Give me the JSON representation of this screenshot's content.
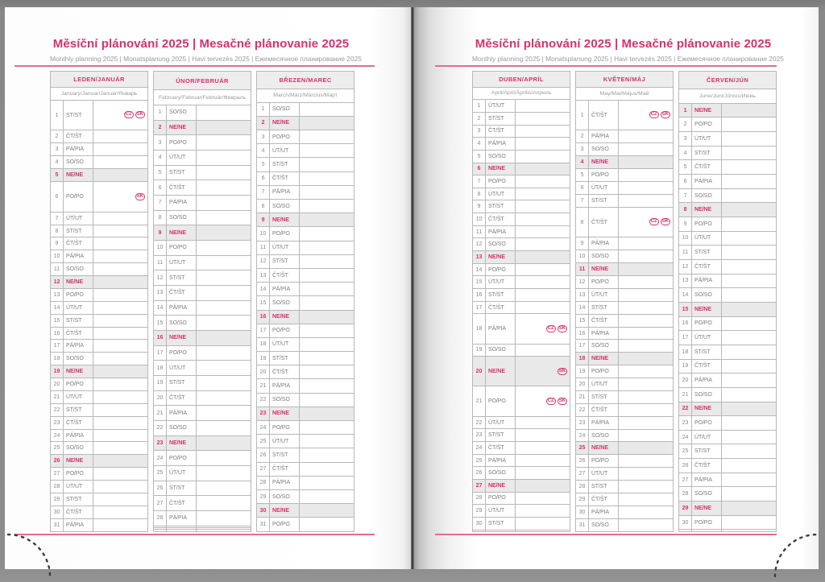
{
  "title": "Měsíční plánování 2025 | Mesačné plánovanie 2025",
  "subtitle": "Monthly planning 2025 | Monatsplanung 2025 | Havi tervezés 2025 | Ежемесячное планирование 2025",
  "sunday_label": "NE/NE",
  "badges": {
    "cz": "CZ",
    "sk": "SK"
  },
  "day_abbreviations": {
    "monday": "PO/PO",
    "tuesday": "ÚT/UT",
    "wednesday": "ST/ST",
    "thursday": "ČT/ŠT",
    "friday": "PÁ/PIA",
    "saturday": "SO/SO",
    "sunday": "NE/NE"
  },
  "colors": {
    "accent_pink": "#d6326d",
    "rule_pink": "#de6d96",
    "sunday_row_bg": "#e9e9e9",
    "month_header_bg": "#ededed",
    "table_border": "#b8b8b8",
    "text_gray": "#7d7d7d"
  },
  "months": [
    {
      "page": "left",
      "name": "LEDEN/JANUÁR",
      "langs": "January/Januar/Január/Январь",
      "rows": [
        [
          1,
          "ST/ST",
          [
            "cz",
            "sk"
          ]
        ],
        [
          2,
          "ČT/ŠT"
        ],
        [
          3,
          "PÁ/PIA"
        ],
        [
          4,
          "SO/SO"
        ],
        [
          5,
          "NE/NE"
        ],
        [
          6,
          "PO/PO",
          [
            "sk"
          ]
        ],
        [
          7,
          "ÚT/UT"
        ],
        [
          8,
          "ST/ST"
        ],
        [
          9,
          "ČT/ŠT"
        ],
        [
          10,
          "PÁ/PIA"
        ],
        [
          11,
          "SO/SO"
        ],
        [
          12,
          "NE/NE"
        ],
        [
          13,
          "PO/PO"
        ],
        [
          14,
          "ÚT/UT"
        ],
        [
          15,
          "ST/ST"
        ],
        [
          16,
          "ČT/ŠT"
        ],
        [
          17,
          "PÁ/PIA"
        ],
        [
          18,
          "SO/SO"
        ],
        [
          19,
          "NE/NE"
        ],
        [
          20,
          "PO/PO"
        ],
        [
          21,
          "ÚT/UT"
        ],
        [
          22,
          "ST/ST"
        ],
        [
          23,
          "ČT/ŠT"
        ],
        [
          24,
          "PÁ/PIA"
        ],
        [
          25,
          "SO/SO"
        ],
        [
          26,
          "NE/NE"
        ],
        [
          27,
          "PO/PO"
        ],
        [
          28,
          "ÚT/UT"
        ],
        [
          29,
          "ST/ST"
        ],
        [
          30,
          "ČT/ŠT"
        ],
        [
          31,
          "PÁ/PIA"
        ]
      ]
    },
    {
      "page": "left",
      "name": "ÚNOR/FEBRUÁR",
      "langs": "February/Februar/Február/Февраль",
      "rows": [
        [
          1,
          "SO/SO"
        ],
        [
          2,
          "NE/NE"
        ],
        [
          3,
          "PO/PO"
        ],
        [
          4,
          "ÚT/UT"
        ],
        [
          5,
          "ST/ST"
        ],
        [
          6,
          "ČT/ŠT"
        ],
        [
          7,
          "PÁ/PIA"
        ],
        [
          8,
          "SO/SO"
        ],
        [
          9,
          "NE/NE"
        ],
        [
          10,
          "PO/PO"
        ],
        [
          11,
          "ÚT/UT"
        ],
        [
          12,
          "ST/ST"
        ],
        [
          13,
          "ČT/ŠT"
        ],
        [
          14,
          "PÁ/PIA"
        ],
        [
          15,
          "SO/SO"
        ],
        [
          16,
          "NE/NE"
        ],
        [
          17,
          "PO/PO"
        ],
        [
          18,
          "ÚT/UT"
        ],
        [
          19,
          "ST/ST"
        ],
        [
          20,
          "ČT/ŠT"
        ],
        [
          21,
          "PÁ/PIA"
        ],
        [
          22,
          "SO/SO"
        ],
        [
          23,
          "NE/NE"
        ],
        [
          24,
          "PO/PO"
        ],
        [
          25,
          "ÚT/UT"
        ],
        [
          26,
          "ST/ST"
        ],
        [
          27,
          "ČT/ŠT"
        ],
        [
          28,
          "PÁ/PIA"
        ],
        [],
        [],
        []
      ]
    },
    {
      "page": "left",
      "name": "BŘEZEN/MAREC",
      "langs": "March/März/Március/Март",
      "rows": [
        [
          1,
          "SO/SO"
        ],
        [
          2,
          "NE/NE"
        ],
        [
          3,
          "PO/PO"
        ],
        [
          4,
          "ÚT/UT"
        ],
        [
          5,
          "ST/ST"
        ],
        [
          6,
          "ČT/ŠT"
        ],
        [
          7,
          "PÁ/PIA"
        ],
        [
          8,
          "SO/SO"
        ],
        [
          9,
          "NE/NE"
        ],
        [
          10,
          "PO/PO"
        ],
        [
          11,
          "ÚT/UT"
        ],
        [
          12,
          "ST/ST"
        ],
        [
          13,
          "ČT/ŠT"
        ],
        [
          14,
          "PÁ/PIA"
        ],
        [
          15,
          "SO/SO"
        ],
        [
          16,
          "NE/NE"
        ],
        [
          17,
          "PO/PO"
        ],
        [
          18,
          "ÚT/UT"
        ],
        [
          19,
          "ST/ST"
        ],
        [
          20,
          "ČT/ŠT"
        ],
        [
          21,
          "PÁ/PIA"
        ],
        [
          22,
          "SO/SO"
        ],
        [
          23,
          "NE/NE"
        ],
        [
          24,
          "PO/PO"
        ],
        [
          25,
          "ÚT/UT"
        ],
        [
          26,
          "ST/ST"
        ],
        [
          27,
          "ČT/ŠT"
        ],
        [
          28,
          "PÁ/PIA"
        ],
        [
          29,
          "SO/SO"
        ],
        [
          30,
          "NE/NE"
        ],
        [
          31,
          "PO/PO"
        ]
      ]
    },
    {
      "page": "right",
      "name": "DUBEN/APRÍL",
      "langs": "April/April/Április/Апрель",
      "rows": [
        [
          1,
          "ÚT/UT"
        ],
        [
          2,
          "ST/ST"
        ],
        [
          3,
          "ČT/ŠT"
        ],
        [
          4,
          "PÁ/PIA"
        ],
        [
          5,
          "SO/SO"
        ],
        [
          6,
          "NE/NE"
        ],
        [
          7,
          "PO/PO"
        ],
        [
          8,
          "ÚT/UT"
        ],
        [
          9,
          "ST/ST"
        ],
        [
          10,
          "ČT/ŠT"
        ],
        [
          11,
          "PÁ/PIA"
        ],
        [
          12,
          "SO/SO"
        ],
        [
          13,
          "NE/NE"
        ],
        [
          14,
          "PO/PO"
        ],
        [
          15,
          "ÚT/UT"
        ],
        [
          16,
          "ST/ST"
        ],
        [
          17,
          "ČT/ŠT"
        ],
        [
          18,
          "PÁ/PIA",
          [
            "cz",
            "sk"
          ]
        ],
        [
          19,
          "SO/SO"
        ],
        [
          20,
          "NE/NE",
          [
            "sk"
          ]
        ],
        [
          21,
          "PO/PO",
          [
            "cz",
            "sk"
          ]
        ],
        [
          22,
          "ÚT/UT"
        ],
        [
          23,
          "ST/ST"
        ],
        [
          24,
          "ČT/ŠT"
        ],
        [
          25,
          "PÁ/PIA"
        ],
        [
          26,
          "SO/SO"
        ],
        [
          27,
          "NE/NE"
        ],
        [
          28,
          "PO/PO"
        ],
        [
          29,
          "ÚT/UT"
        ],
        [
          30,
          "ST/ST"
        ],
        []
      ]
    },
    {
      "page": "right",
      "name": "KVĚTEN/MÁJ",
      "langs": "May/Mai/Május/Май",
      "rows": [
        [
          1,
          "ČT/ŠT",
          [
            "cz",
            "sk"
          ]
        ],
        [
          2,
          "PÁ/PIA"
        ],
        [
          3,
          "SO/SO"
        ],
        [
          4,
          "NE/NE"
        ],
        [
          5,
          "PO/PO"
        ],
        [
          6,
          "ÚT/UT"
        ],
        [
          7,
          "ST/ST"
        ],
        [
          8,
          "ČT/ŠT",
          [
            "cz",
            "sk"
          ]
        ],
        [
          9,
          "PÁ/PIA"
        ],
        [
          10,
          "SO/SO"
        ],
        [
          11,
          "NE/NE"
        ],
        [
          12,
          "PO/PO"
        ],
        [
          13,
          "ÚT/UT"
        ],
        [
          14,
          "ST/ST"
        ],
        [
          15,
          "ČT/ŠT"
        ],
        [
          16,
          "PÁ/PIA"
        ],
        [
          17,
          "SO/SO"
        ],
        [
          18,
          "NE/NE"
        ],
        [
          19,
          "PO/PO"
        ],
        [
          20,
          "ÚT/UT"
        ],
        [
          21,
          "ST/ST"
        ],
        [
          22,
          "ČT/ŠT"
        ],
        [
          23,
          "PÁ/PIA"
        ],
        [
          24,
          "SO/SO"
        ],
        [
          25,
          "NE/NE"
        ],
        [
          26,
          "PO/PO"
        ],
        [
          27,
          "ÚT/UT"
        ],
        [
          28,
          "ST/ST"
        ],
        [
          29,
          "ČT/ŠT"
        ],
        [
          30,
          "PÁ/PIA"
        ],
        [
          31,
          "SO/SO"
        ]
      ]
    },
    {
      "page": "right",
      "name": "ČERVEN/JÚN",
      "langs": "June/Juni/Június/Июнь",
      "rows": [
        [
          1,
          "NE/NE"
        ],
        [
          2,
          "PO/PO"
        ],
        [
          3,
          "ÚT/UT"
        ],
        [
          4,
          "ST/ST"
        ],
        [
          5,
          "ČT/ŠT"
        ],
        [
          6,
          "PÁ/PIA"
        ],
        [
          7,
          "SO/SO"
        ],
        [
          8,
          "NE/NE"
        ],
        [
          9,
          "PO/PO"
        ],
        [
          10,
          "ÚT/UT"
        ],
        [
          11,
          "ST/ST"
        ],
        [
          12,
          "ČT/ŠT"
        ],
        [
          13,
          "PÁ/PIA"
        ],
        [
          14,
          "SO/SO"
        ],
        [
          15,
          "NE/NE"
        ],
        [
          16,
          "PO/PO"
        ],
        [
          17,
          "ÚT/UT"
        ],
        [
          18,
          "ST/ST"
        ],
        [
          19,
          "ČT/ŠT"
        ],
        [
          20,
          "PÁ/PIA"
        ],
        [
          21,
          "SO/SO"
        ],
        [
          22,
          "NE/NE"
        ],
        [
          23,
          "PO/PO"
        ],
        [
          24,
          "ÚT/UT"
        ],
        [
          25,
          "ST/ST"
        ],
        [
          26,
          "ČT/ŠT"
        ],
        [
          27,
          "PÁ/PIA"
        ],
        [
          28,
          "SO/SO"
        ],
        [
          29,
          "NE/NE"
        ],
        [
          30,
          "PO/PO"
        ],
        []
      ]
    }
  ]
}
